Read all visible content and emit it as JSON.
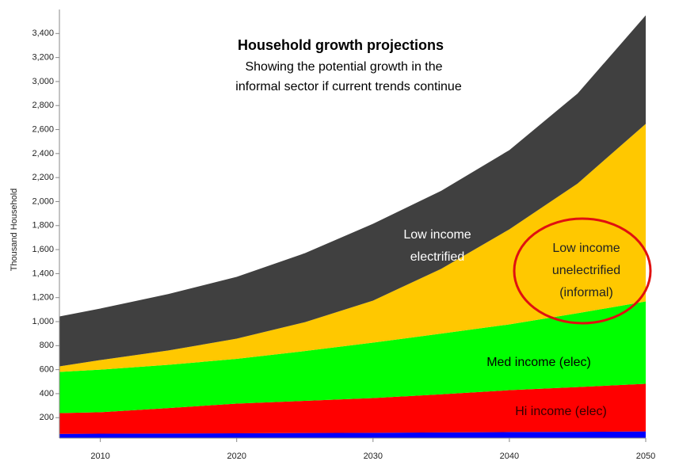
{
  "chart_data": {
    "type": "stacked-area",
    "title": "Household growth projections",
    "subtitle": [
      "Showing the potential  growth in the",
      "informal sector if current trends continue"
    ],
    "y_label": "Thousand Household",
    "x": [
      2007,
      2010,
      2015,
      2020,
      2025,
      2030,
      2035,
      2040,
      2045,
      2050
    ],
    "xlim": [
      2007,
      2050
    ],
    "xticks": [
      2010,
      2020,
      2030,
      2040,
      2050
    ],
    "ylim": [
      30,
      3600
    ],
    "yticks": [
      200,
      400,
      600,
      800,
      {
        "value": 1000,
        "label": "1,000"
      },
      {
        "value": 1200,
        "label": "1,200"
      },
      {
        "value": 1400,
        "label": "1,400"
      },
      {
        "value": 1600,
        "label": "1,600"
      },
      {
        "value": 1800,
        "label": "1,800"
      },
      {
        "value": 2000,
        "label": "2,000"
      },
      {
        "value": 2200,
        "label": "2,200"
      },
      {
        "value": 2400,
        "label": "2,400"
      },
      {
        "value": 2600,
        "label": "2,600"
      },
      {
        "value": 2800,
        "label": "2,800"
      },
      {
        "value": 3000,
        "label": "3,000"
      },
      {
        "value": 3200,
        "label": "3,200"
      },
      {
        "value": 3400,
        "label": "3,400"
      }
    ],
    "series": [
      {
        "color": "#0000ff",
        "values": [
          65,
          66,
          68,
          70,
          72,
          74,
          77,
          80,
          82,
          85
        ]
      },
      {
        "name": [
          "Hi income (elec)"
        ],
        "color": "#ff0000",
        "values": [
          173,
          179,
          212,
          247,
          268,
          289,
          318,
          349,
          373,
          397
        ]
      },
      {
        "name": [
          "Med income (elec)"
        ],
        "color": "#00ff00",
        "values": [
          343,
          355,
          360,
          373,
          415,
          462,
          505,
          548,
          615,
          686
        ]
      },
      {
        "name": [
          "Low income",
          "unelectrified",
          "(informal)"
        ],
        "color": "#ffc800",
        "values": [
          46,
          80,
          120,
          168,
          240,
          350,
          540,
          792,
          1080,
          1479
        ]
      },
      {
        "name": [
          "Low income",
          "electrified"
        ],
        "color": "#404040",
        "values": [
          416,
          429,
          470,
          515,
          575,
          640,
          650,
          660,
          750,
          904
        ]
      }
    ]
  }
}
